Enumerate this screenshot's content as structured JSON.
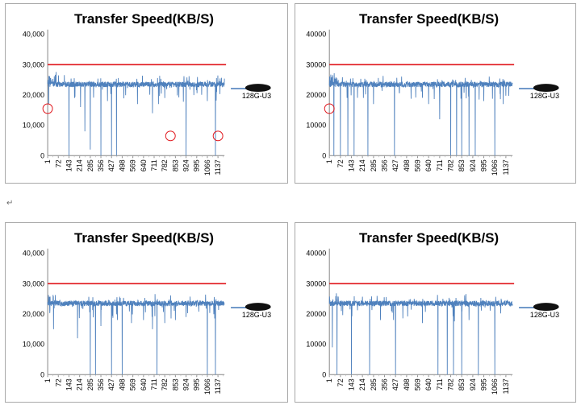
{
  "chart_data": [
    {
      "type": "line",
      "title": "Transfer Speed(KB/S)",
      "ylim": [
        0,
        40000
      ],
      "yticks": [
        "0",
        "10,000",
        "20,000",
        "30,000",
        "40,000"
      ],
      "x_ticks": [
        "1",
        "72",
        "143",
        "214",
        "285",
        "356",
        "427",
        "498",
        "569",
        "640",
        "711",
        "782",
        "853",
        "924",
        "995",
        "1066",
        "1137"
      ],
      "xlim": [
        1,
        1180
      ],
      "reference_line": {
        "value": 30000,
        "color": "#e0151b"
      },
      "series": [
        {
          "name": "128G-U3",
          "color": "#4f81bd",
          "baseline": 23500,
          "dips": [
            [
              8,
              17000
            ],
            [
              143,
              0
            ],
            [
              180,
              19000
            ],
            [
              220,
              16000
            ],
            [
              249,
              8000
            ],
            [
              285,
              2000
            ],
            [
              356,
              0
            ],
            [
              400,
              18000
            ],
            [
              427,
              0
            ],
            [
              460,
              0
            ],
            [
              600,
              17000
            ],
            [
              700,
              14000
            ],
            [
              740,
              17000
            ],
            [
              782,
              19000
            ],
            [
              924,
              0
            ],
            [
              1066,
              18000
            ],
            [
              1120,
              0
            ]
          ]
        }
      ],
      "highlight_x": [
        1,
        820,
        1137
      ],
      "highlight_y": [
        15500,
        6500,
        6500
      ]
    },
    {
      "type": "line",
      "title": "Transfer Speed(KB/S)",
      "ylim": [
        0,
        40000
      ],
      "yticks": [
        "0",
        "10000",
        "20000",
        "30000",
        "40000"
      ],
      "x_ticks": [
        "1",
        "72",
        "143",
        "214",
        "285",
        "356",
        "427",
        "498",
        "569",
        "640",
        "711",
        "782",
        "853",
        "924",
        "995",
        "1066",
        "1137"
      ],
      "xlim": [
        1,
        1180
      ],
      "reference_line": {
        "value": 30000,
        "color": "#e0151b"
      },
      "series": [
        {
          "name": "128G-U3",
          "color": "#4f81bd",
          "baseline": 23500,
          "dips": [
            [
              30,
              0
            ],
            [
              72,
              0
            ],
            [
              120,
              0
            ],
            [
              160,
              0
            ],
            [
              249,
              0
            ],
            [
              285,
              17000
            ],
            [
              420,
              0
            ],
            [
              640,
              17000
            ],
            [
              711,
              12000
            ],
            [
              782,
              0
            ],
            [
              820,
              0
            ],
            [
              853,
              0
            ],
            [
              900,
              0
            ],
            [
              940,
              0
            ],
            [
              995,
              18000
            ],
            [
              1066,
              0
            ],
            [
              1120,
              17000
            ]
          ]
        }
      ],
      "highlight_x": [
        1
      ],
      "highlight_y": [
        15500
      ]
    },
    {
      "type": "line",
      "title": "Transfer Speed(KB/S)",
      "ylim": [
        0,
        40000
      ],
      "yticks": [
        "0",
        "10,000",
        "20,000",
        "30,000",
        "40,000"
      ],
      "x_ticks": [
        "1",
        "72",
        "143",
        "214",
        "285",
        "356",
        "427",
        "498",
        "569",
        "640",
        "711",
        "782",
        "853",
        "924",
        "995",
        "1066",
        "1137"
      ],
      "xlim": [
        1,
        1180
      ],
      "reference_line": {
        "value": 30000,
        "color": "#e0151b"
      },
      "series": [
        {
          "name": "128G-U3",
          "color": "#4f81bd",
          "baseline": 23500,
          "dips": [
            [
              40,
              15000
            ],
            [
              200,
              12000
            ],
            [
              285,
              0
            ],
            [
              320,
              0
            ],
            [
              356,
              16000
            ],
            [
              427,
              0
            ],
            [
              498,
              0
            ],
            [
              560,
              17000
            ],
            [
              640,
              18000
            ],
            [
              700,
              15000
            ],
            [
              730,
              0
            ],
            [
              782,
              17000
            ],
            [
              853,
              18000
            ],
            [
              924,
              19000
            ],
            [
              1066,
              0
            ],
            [
              1120,
              0
            ]
          ]
        }
      ],
      "highlight_x": [],
      "highlight_y": []
    },
    {
      "type": "line",
      "title": "Transfer Speed(KB/S)",
      "ylim": [
        0,
        40000
      ],
      "yticks": [
        "0",
        "10000",
        "20000",
        "30000",
        "40000"
      ],
      "x_ticks": [
        "1",
        "72",
        "143",
        "214",
        "285",
        "356",
        "427",
        "498",
        "569",
        "640",
        "711",
        "782",
        "853",
        "924",
        "995",
        "1066",
        "1137"
      ],
      "xlim": [
        1,
        1180
      ],
      "reference_line": {
        "value": 30000,
        "color": "#e0151b"
      },
      "series": [
        {
          "name": "128G-U3",
          "color": "#4f81bd",
          "baseline": 23500,
          "dips": [
            [
              20,
              9000
            ],
            [
              50,
              0
            ],
            [
              143,
              0
            ],
            [
              260,
              0
            ],
            [
              330,
              18000
            ],
            [
              427,
              0
            ],
            [
              600,
              17000
            ],
            [
              700,
              0
            ],
            [
              760,
              0
            ],
            [
              800,
              0
            ],
            [
              853,
              0
            ],
            [
              900,
              18000
            ],
            [
              960,
              0
            ],
            [
              1066,
              0
            ]
          ]
        }
      ],
      "highlight_x": [],
      "highlight_y": []
    }
  ],
  "page": {
    "return_mark": "↵"
  }
}
